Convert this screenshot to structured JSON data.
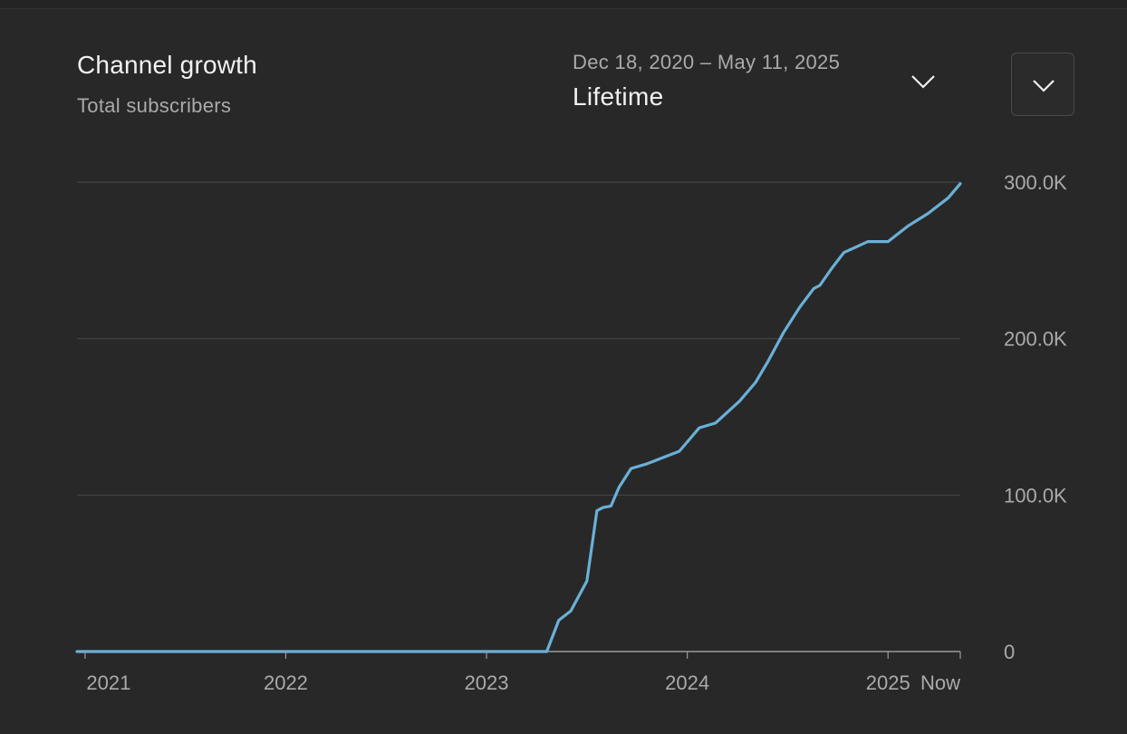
{
  "header": {
    "title": "Channel growth",
    "subtitle": "Total subscribers"
  },
  "range_picker": {
    "dates": "Dec 18, 2020 – May 11, 2025",
    "label": "Lifetime",
    "chevron_icon": "chevron-down-icon"
  },
  "expand_button": {
    "icon": "chevron-down-icon"
  },
  "colors": {
    "background": "#282828",
    "line": "#6ab0d8",
    "grid": "#444444",
    "axis": "#9a9a9a"
  },
  "chart_data": {
    "type": "line",
    "title": "Channel growth",
    "subtitle": "Total subscribers",
    "xlabel": "",
    "ylabel": "",
    "xlim": [
      2020.96,
      2025.36
    ],
    "ylim": [
      0,
      300000
    ],
    "yticks": [
      0,
      100000,
      200000,
      300000
    ],
    "ytick_labels": [
      "0",
      "100.0K",
      "200.0K",
      "300.0K"
    ],
    "xticks": [
      2021.0,
      2022.0,
      2023.0,
      2024.0,
      2025.0,
      2025.36
    ],
    "xtick_labels": [
      "2021",
      "2022",
      "2023",
      "2024",
      "2025",
      "Now"
    ],
    "grid": true,
    "legend": "none",
    "series": [
      {
        "x": [
          2020.96,
          2023.3,
          2023.36,
          2023.42,
          2023.5,
          2023.55,
          2023.58,
          2023.62,
          2023.66,
          2023.72,
          2023.8,
          2023.88,
          2023.96,
          2024.06,
          2024.14,
          2024.26,
          2024.34,
          2024.4,
          2024.48,
          2024.56,
          2024.63,
          2024.66,
          2024.72,
          2024.78,
          2024.9,
          2025.0,
          2025.1,
          2025.2,
          2025.3,
          2025.36
        ],
        "y": [
          0,
          0,
          20000,
          26000,
          45000,
          90000,
          92000,
          93000,
          105000,
          117000,
          120000,
          124000,
          128000,
          143000,
          146000,
          160000,
          172000,
          185000,
          204000,
          220000,
          232000,
          234000,
          245000,
          255000,
          262000,
          262000,
          272000,
          280000,
          290000,
          299000
        ]
      }
    ]
  }
}
